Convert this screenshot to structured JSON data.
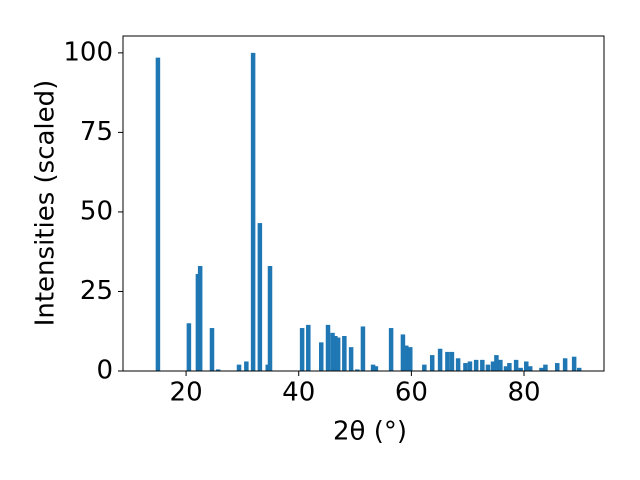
{
  "chart_data": {
    "type": "bar",
    "xlabel": "2θ (°)",
    "ylabel": "Intensities (scaled)",
    "x": [
      15.0,
      20.5,
      22.1,
      22.5,
      24.6,
      25.7,
      29.4,
      30.7,
      31.9,
      33.1,
      34.5,
      34.9,
      40.6,
      41.7,
      44.0,
      45.2,
      46.0,
      46.5,
      47.0,
      48.1,
      49.3,
      50.4,
      51.4,
      53.2,
      53.7,
      56.4,
      58.5,
      59.1,
      59.8,
      62.3,
      63.7,
      65.1,
      66.4,
      67.2,
      68.3,
      69.6,
      70.4,
      71.5,
      72.6,
      73.6,
      74.5,
      75.1,
      75.8,
      76.8,
      77.4,
      78.6,
      79.4,
      80.4,
      81.1,
      83.1,
      83.8,
      85.9,
      87.3,
      88.9,
      89.8
    ],
    "values": [
      98.5,
      15,
      30.5,
      33,
      13.5,
      0.5,
      2,
      3,
      100,
      46.5,
      2,
      33,
      13.5,
      14.5,
      9,
      14.5,
      12,
      11,
      10.5,
      11,
      7.5,
      0.5,
      14,
      2,
      1.5,
      13.5,
      11.5,
      8,
      7.5,
      2,
      5,
      7,
      6,
      6,
      4,
      2.5,
      3,
      3.5,
      3.5,
      2,
      3,
      5,
      3.5,
      1.5,
      2.5,
      3.5,
      1,
      3,
      1.5,
      1,
      2,
      2.5,
      4,
      4.5,
      1
    ],
    "bar_width": 0.8,
    "color": "#1f77b4",
    "xlim": [
      8.8,
      94.2
    ],
    "xticks": [
      20,
      40,
      60,
      80
    ],
    "ylim": [
      0,
      105.3
    ],
    "yticks": [
      0,
      25,
      50,
      75,
      100
    ],
    "grid": false
  }
}
